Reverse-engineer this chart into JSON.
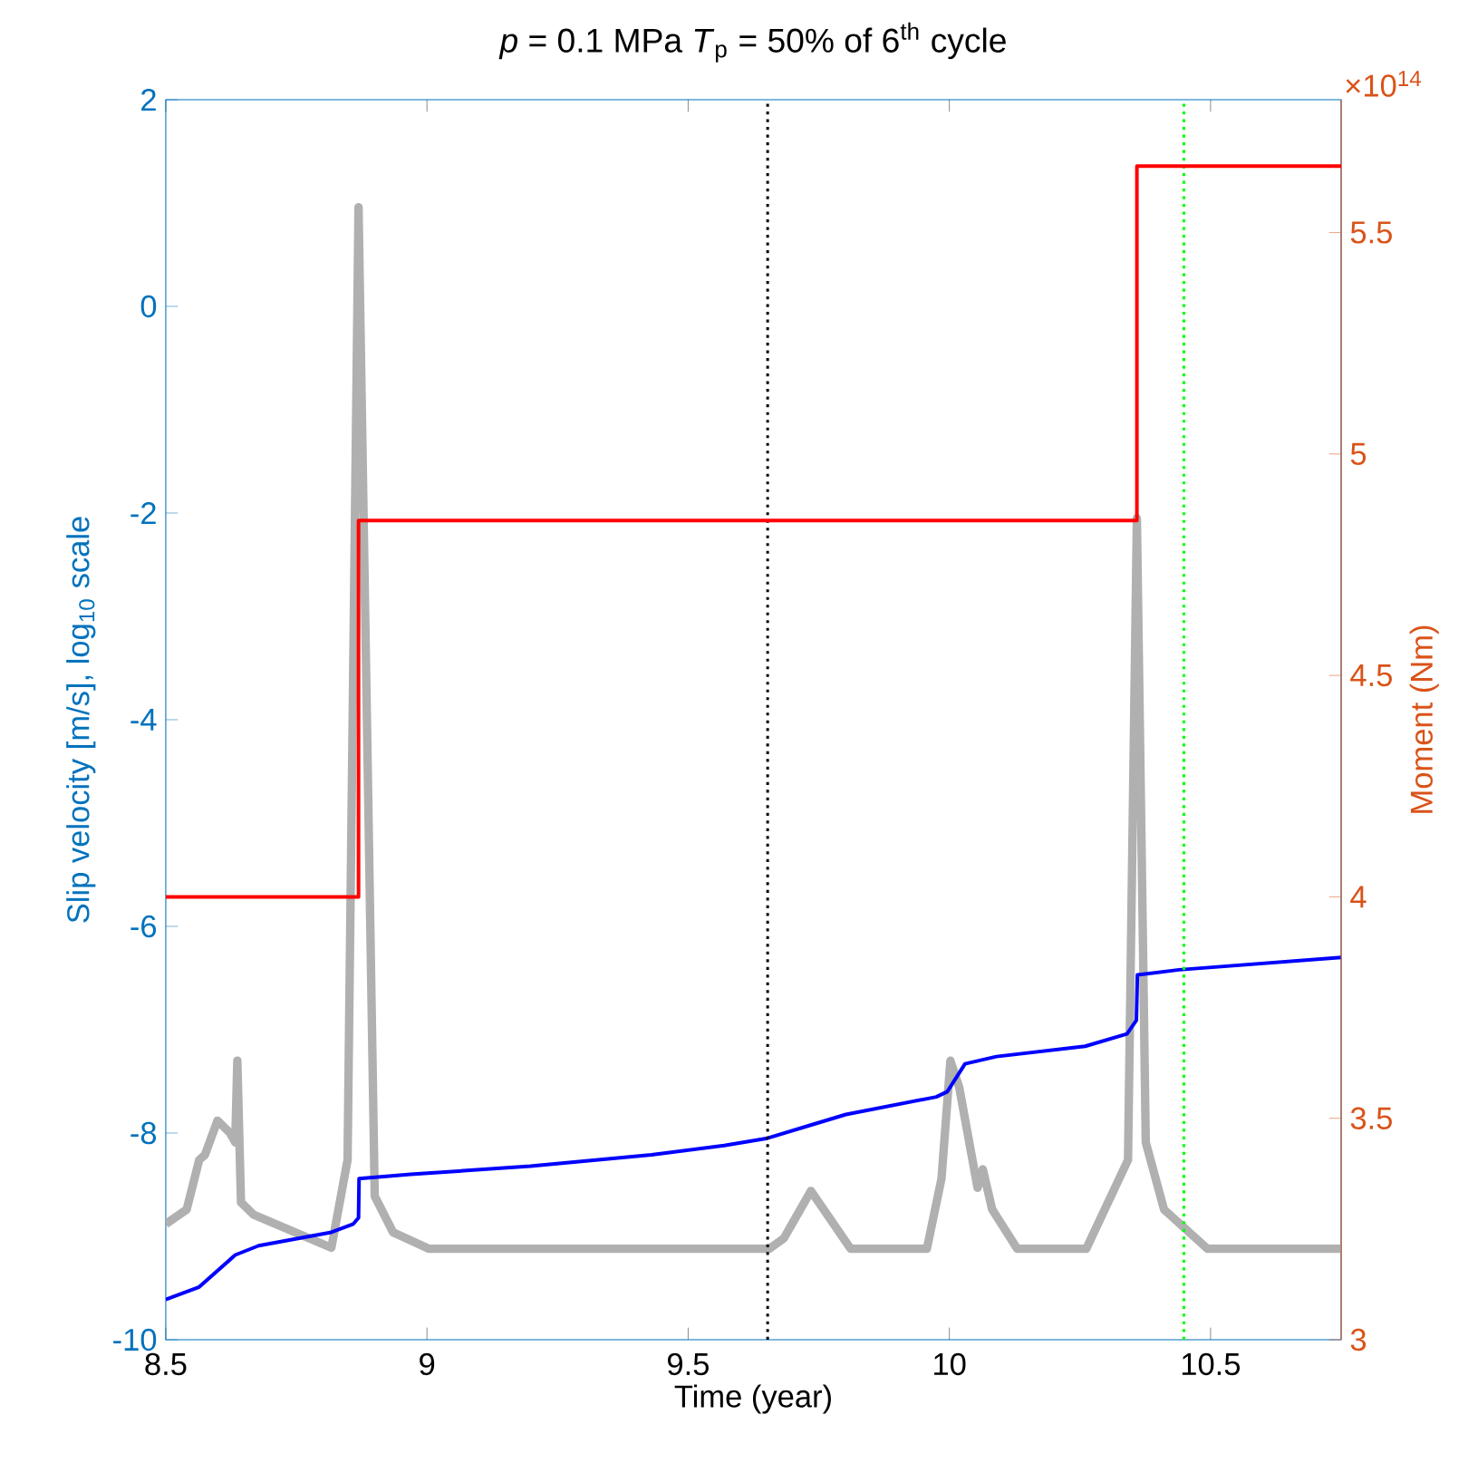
{
  "chart_data": {
    "type": "line",
    "title": "*p* = 0.1 MPa     *T*$_{p}$ = 50% of 6$^{th}$ cycle",
    "xlabel": "Time (year)",
    "ylabel": "Slip velocity [m/s], log$_{10}$ scale",
    "y2label": "Moment (Nm)",
    "annotations": [
      "×10$^{14}$"
    ],
    "xlim": [
      8.5,
      10.75
    ],
    "xticks": [
      8.5,
      9,
      9.5,
      10,
      10.5
    ],
    "ylim": [
      -10,
      2
    ],
    "yticks": [
      -10,
      -8,
      -6,
      -4,
      -2,
      0,
      2
    ],
    "y2lim": [
      3,
      5.8
    ],
    "y2ticks": [
      3,
      3.5,
      4,
      4.5,
      5,
      5.5
    ],
    "series": [
      {
        "color": "#b0b0b0",
        "x": [
          8.5,
          8.54,
          8.564,
          8.575,
          8.599,
          8.623,
          8.633,
          8.637,
          8.644,
          8.668,
          8.817,
          8.848,
          8.869,
          8.9,
          8.935,
          9.004,
          9.655,
          9.683,
          9.735,
          9.811,
          9.957,
          9.985,
          10.002,
          10.019,
          10.054,
          10.064,
          10.082,
          10.13,
          10.262,
          10.342,
          10.359,
          10.376,
          10.411,
          10.494,
          10.75
        ],
        "values": [
          -8.88,
          -8.74,
          -8.26,
          -8.21,
          -7.88,
          -8.0,
          -8.09,
          -7.3,
          -8.67,
          -8.79,
          -9.11,
          -8.26,
          0.96,
          -8.61,
          -8.96,
          -9.12,
          -9.12,
          -9.02,
          -8.56,
          -9.12,
          -9.12,
          -8.44,
          -7.3,
          -7.56,
          -8.53,
          -8.35,
          -8.74,
          -9.12,
          -9.12,
          -8.26,
          -2.05,
          -8.09,
          -8.74,
          -9.12,
          -9.12
        ]
      },
      {
        "type": "step",
        "axis": "y2",
        "color": "#ff0000",
        "x": [
          8.5,
          8.869,
          10.359,
          10.75
        ],
        "values": [
          4.0,
          4.85,
          5.65,
          5.65
        ]
      },
      {
        "color": "#0000ff",
        "x": [
          8.5,
          8.564,
          8.633,
          8.678,
          8.817,
          8.859,
          8.869,
          8.87,
          8.969,
          9.198,
          9.43,
          9.569,
          9.652,
          9.743,
          9.802,
          9.975,
          9.996,
          10.03,
          10.09,
          10.26,
          10.34,
          10.358,
          10.36,
          10.44,
          10.75
        ],
        "values": [
          -9.61,
          -9.49,
          -9.18,
          -9.09,
          -8.96,
          -8.88,
          -8.82,
          -8.44,
          -8.4,
          -8.32,
          -8.21,
          -8.12,
          -8.05,
          -7.91,
          -7.82,
          -7.65,
          -7.6,
          -7.33,
          -7.26,
          -7.16,
          -7.04,
          -6.91,
          -6.47,
          -6.42,
          -6.3
        ]
      }
    ],
    "ref_lines": [
      {
        "axis": "x",
        "value": 9.652,
        "color": "#000000",
        "line_style": "dotted"
      },
      {
        "axis": "x",
        "value": 10.449,
        "color": "#00ff00",
        "line_style": "dotted"
      }
    ]
  }
}
